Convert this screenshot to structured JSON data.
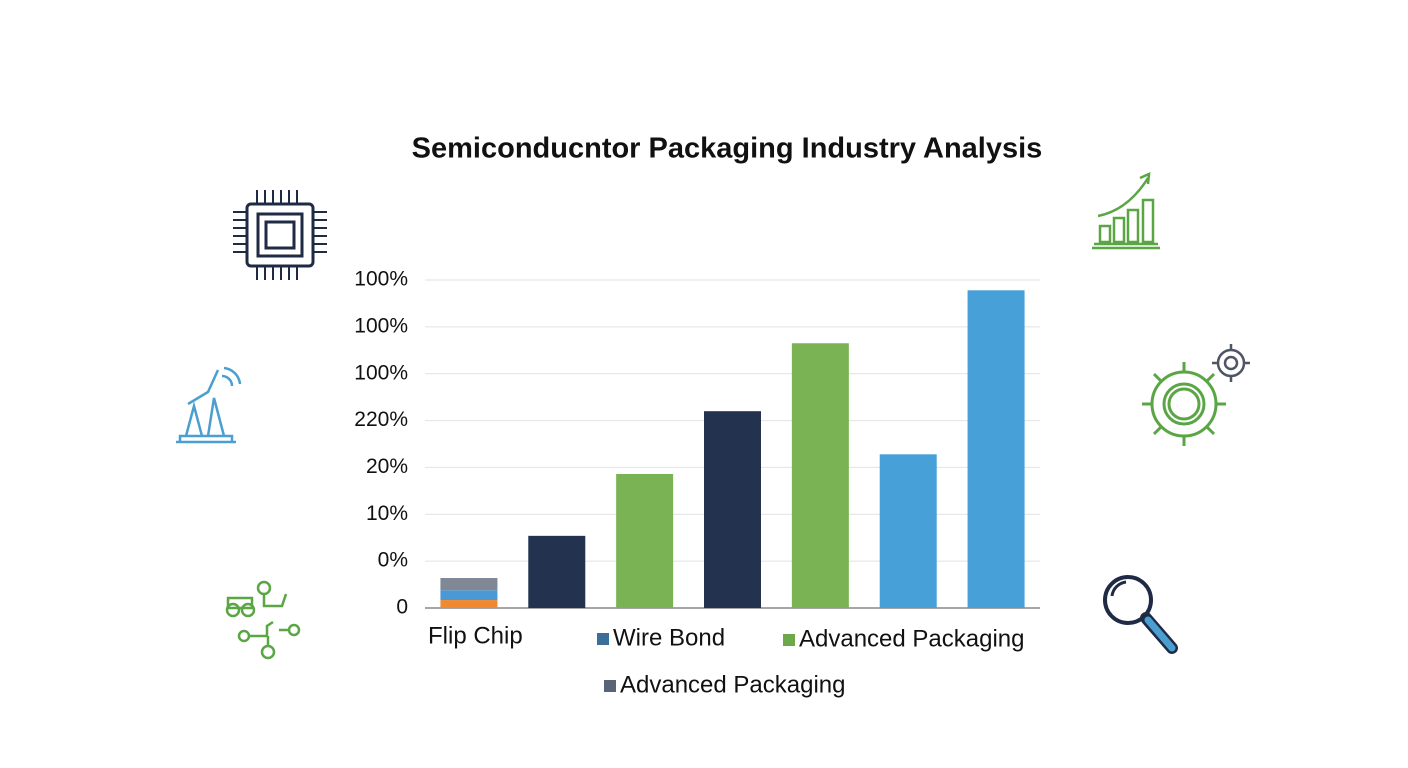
{
  "chart_data": {
    "type": "bar",
    "title": "Semiconducntor Packaging Industry Analysis",
    "categories": [
      "Flip Chip",
      null,
      null,
      null,
      null,
      null,
      null
    ],
    "bars": [
      {
        "segments": [
          {
            "value": 0.17,
            "color": "#ef8a33"
          },
          {
            "value": 0.21,
            "color": "#4a98d6"
          },
          {
            "value": 0.26,
            "color": "#808795"
          }
        ]
      },
      {
        "segments": [
          {
            "value": 1.54,
            "color": "#22324f"
          }
        ]
      },
      {
        "segments": [
          {
            "value": 2.86,
            "color": "#7ab353"
          }
        ]
      },
      {
        "segments": [
          {
            "value": 4.2,
            "color": "#22324f"
          }
        ]
      },
      {
        "segments": [
          {
            "value": 5.65,
            "color": "#7ab353"
          }
        ]
      },
      {
        "segments": [
          {
            "value": 3.28,
            "color": "#48a0d8"
          }
        ]
      },
      {
        "segments": [
          {
            "value": 6.78,
            "color": "#48a0d8"
          }
        ]
      }
    ],
    "legend": [
      {
        "name": "Wire Bond",
        "color": "#3d6e99"
      },
      {
        "name": "Advanced Packaging",
        "color": "#6fa84a"
      },
      {
        "name": "Advanced Packaging",
        "color": "#5a6378"
      }
    ],
    "ylim": [
      0,
      7
    ],
    "yticks": [
      {
        "value": 0,
        "label": "0"
      },
      {
        "value": 1,
        "label": "0%"
      },
      {
        "value": 2,
        "label": "10%"
      },
      {
        "value": 3,
        "label": "20%"
      },
      {
        "value": 4,
        "label": "220%"
      },
      {
        "value": 5,
        "label": "100%"
      },
      {
        "value": 6,
        "label": "100%"
      },
      {
        "value": 7,
        "label": "100%"
      }
    ],
    "grid": true
  }
}
